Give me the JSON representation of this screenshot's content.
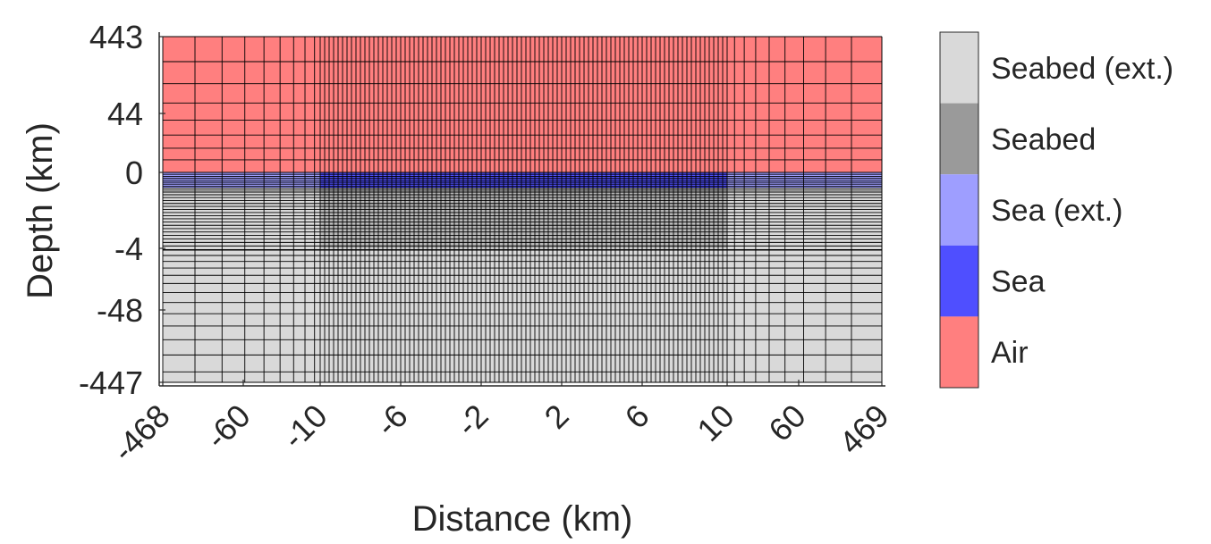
{
  "chart_data": {
    "type": "heatmap",
    "title": "",
    "xlabel": "Distance (km)",
    "ylabel": "Depth (km)",
    "x_tick_labels": [
      "-468",
      "-60",
      "-10",
      "-6",
      "-2",
      "2",
      "6",
      "10",
      "60",
      "469"
    ],
    "y_tick_labels": [
      "443",
      "44",
      "0",
      "-4",
      "-48",
      "-447"
    ],
    "x_range_km": [
      -468,
      469
    ],
    "y_range_km": [
      -447,
      443
    ],
    "scale": "nonlinear mesh axis (fine cells near the sea, coarse cells in the extensions)",
    "grid": true,
    "regions": [
      {
        "name": "Air",
        "x_km": [
          -468,
          469
        ],
        "y_km": [
          0,
          443
        ]
      },
      {
        "name": "Sea (ext.)",
        "x_km": [
          -468,
          -10
        ],
        "y_km": [
          -0.5,
          0
        ]
      },
      {
        "name": "Sea",
        "x_km": [
          -10,
          10
        ],
        "y_km": [
          -0.5,
          0
        ]
      },
      {
        "name": "Sea (ext.)",
        "x_km": [
          10,
          469
        ],
        "y_km": [
          -0.5,
          0
        ]
      },
      {
        "name": "Seabed",
        "x_km": [
          -10,
          10
        ],
        "y_km": [
          -4,
          -0.5
        ]
      },
      {
        "name": "Seabed (ext.)",
        "x_km": [
          -468,
          469
        ],
        "y_km": [
          -447,
          -0.5
        ]
      }
    ],
    "legend": {
      "placement": "right",
      "entries": [
        {
          "label": "Seabed (ext.)",
          "color": "#d9d9d9"
        },
        {
          "label": "Seabed",
          "color": "#9a9a9a"
        },
        {
          "label": "Sea (ext.)",
          "color": "#9e9eff"
        },
        {
          "label": "Sea",
          "color": "#4f4fff"
        },
        {
          "label": "Air",
          "color": "#ff7f7f"
        }
      ]
    }
  },
  "colors": {
    "grid_line": "#000000",
    "axis": "#262626",
    "frame": "#d6d6d6"
  }
}
